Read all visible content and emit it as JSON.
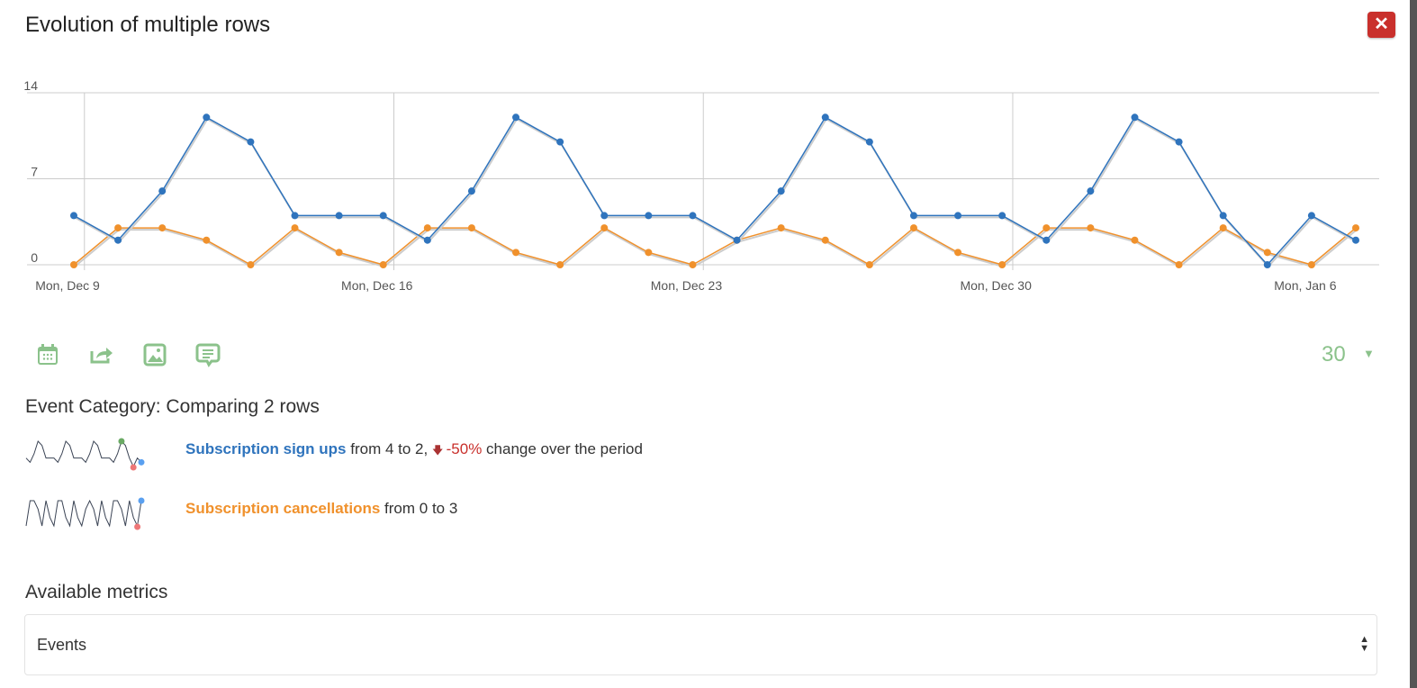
{
  "dialog": {
    "title": "Evolution of multiple rows",
    "close_label": "✕"
  },
  "chart_data": {
    "type": "line",
    "y_ticks": [
      "0",
      "7",
      "14"
    ],
    "ylim": [
      0,
      14
    ],
    "x_tick_labels": [
      "Mon, Dec 9",
      "Mon, Dec 16",
      "Mon, Dec 23",
      "Mon, Dec 30",
      "Mon, Jan 6"
    ],
    "x": [
      "Dec 9",
      "Dec 10",
      "Dec 11",
      "Dec 12",
      "Dec 13",
      "Dec 14",
      "Dec 15",
      "Dec 16",
      "Dec 17",
      "Dec 18",
      "Dec 19",
      "Dec 20",
      "Dec 21",
      "Dec 22",
      "Dec 23",
      "Dec 24",
      "Dec 25",
      "Dec 26",
      "Dec 27",
      "Dec 28",
      "Dec 29",
      "Dec 30",
      "Dec 31",
      "Jan 1",
      "Jan 2",
      "Jan 3",
      "Jan 4",
      "Jan 5",
      "Jan 6",
      "Jan 7"
    ],
    "series": [
      {
        "name": "Subscription sign ups",
        "color": "#2f74bd",
        "values": [
          4,
          2,
          6,
          12,
          10,
          4,
          4,
          4,
          2,
          6,
          12,
          10,
          4,
          4,
          4,
          2,
          6,
          12,
          10,
          4,
          4,
          4,
          2,
          6,
          12,
          10,
          4,
          0,
          4,
          2
        ]
      },
      {
        "name": "Subscription cancellations",
        "color": "#f0912c",
        "values": [
          0,
          3,
          3,
          2,
          0,
          3,
          1,
          0,
          3,
          3,
          1,
          0,
          3,
          1,
          0,
          2,
          3,
          2,
          0,
          3,
          1,
          0,
          3,
          3,
          2,
          0,
          3,
          1,
          0,
          3
        ]
      }
    ],
    "grid": true
  },
  "toolbar": {
    "icons": [
      "calendar-icon",
      "export-icon",
      "image-icon",
      "annotation-icon"
    ],
    "limit_value": "30",
    "limit_arrow": "▼"
  },
  "comparison": {
    "heading": "Event Category: Comparing 2 rows",
    "rows": [
      {
        "label": "Subscription sign ups",
        "text": " from 4 to 2, ",
        "change": "-50%",
        "suffix": " change over the period"
      },
      {
        "label": "Subscription cancellations",
        "text": " from 0 to 3"
      }
    ]
  },
  "metrics": {
    "label": "Available metrics",
    "selected": "Events",
    "arrows": "▲▼"
  }
}
